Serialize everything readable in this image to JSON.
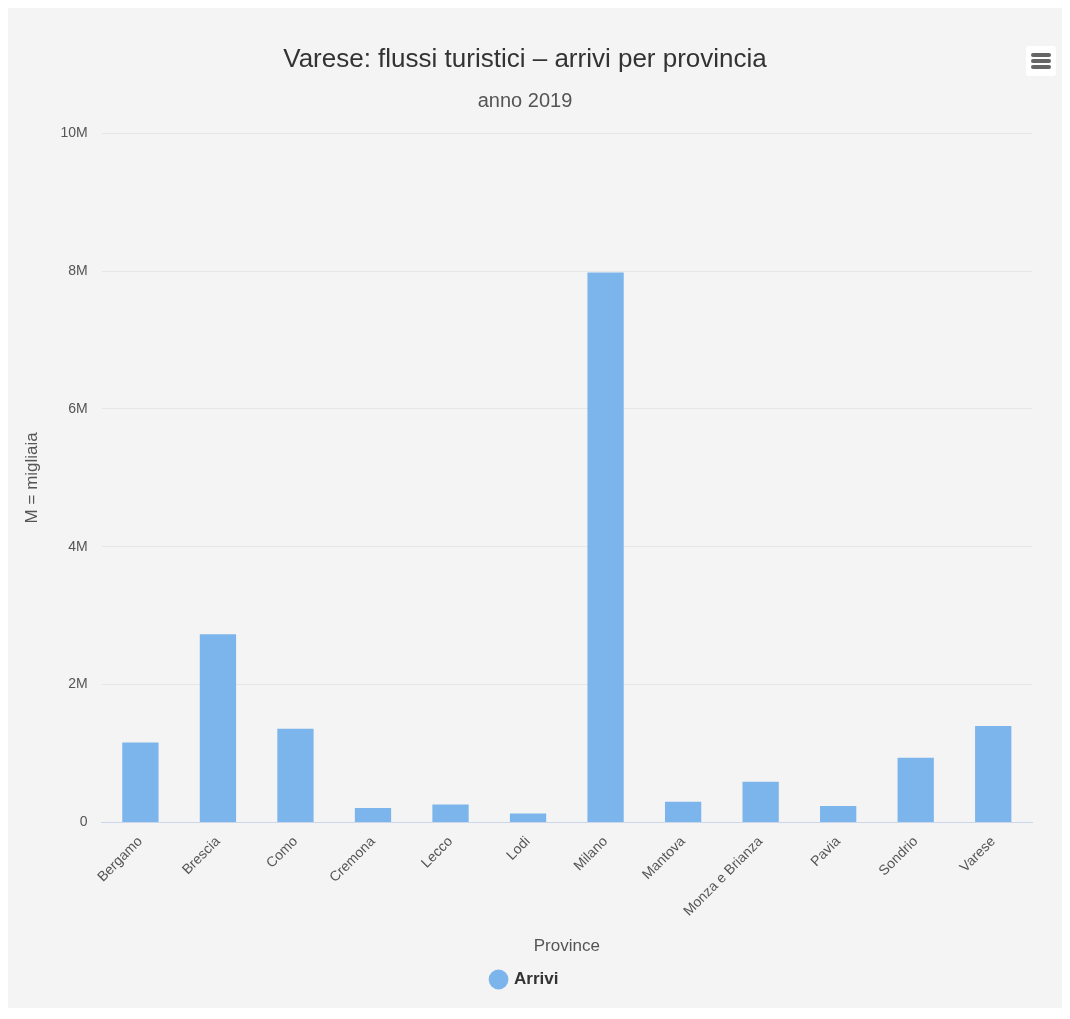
{
  "chart_data": {
    "type": "bar",
    "title": "Varese: flussi turistici – arrivi per provincia",
    "subtitle": "anno 2019",
    "xlabel": "Province",
    "ylabel": "M = migliaia",
    "categories": [
      "Bergamo",
      "Brescia",
      "Como",
      "Cremona",
      "Lecco",
      "Lodi",
      "Milano",
      "Mantova",
      "Monza e Brianza",
      "Pavia",
      "Sondrio",
      "Varese"
    ],
    "series": [
      {
        "name": "Arrivi",
        "color": "#7cb5ec",
        "values": [
          1160000,
          2730000,
          1360000,
          210000,
          260000,
          130000,
          7980000,
          300000,
          590000,
          240000,
          940000,
          1400000
        ]
      }
    ],
    "ylim": [
      0,
      10000000
    ],
    "yticks": [
      {
        "value": 0,
        "label": "0"
      },
      {
        "value": 2000000,
        "label": "2M"
      },
      {
        "value": 4000000,
        "label": "4M"
      },
      {
        "value": 6000000,
        "label": "6M"
      },
      {
        "value": 8000000,
        "label": "8M"
      },
      {
        "value": 10000000,
        "label": "10M"
      }
    ],
    "grid": "y",
    "legend": "bottom"
  }
}
